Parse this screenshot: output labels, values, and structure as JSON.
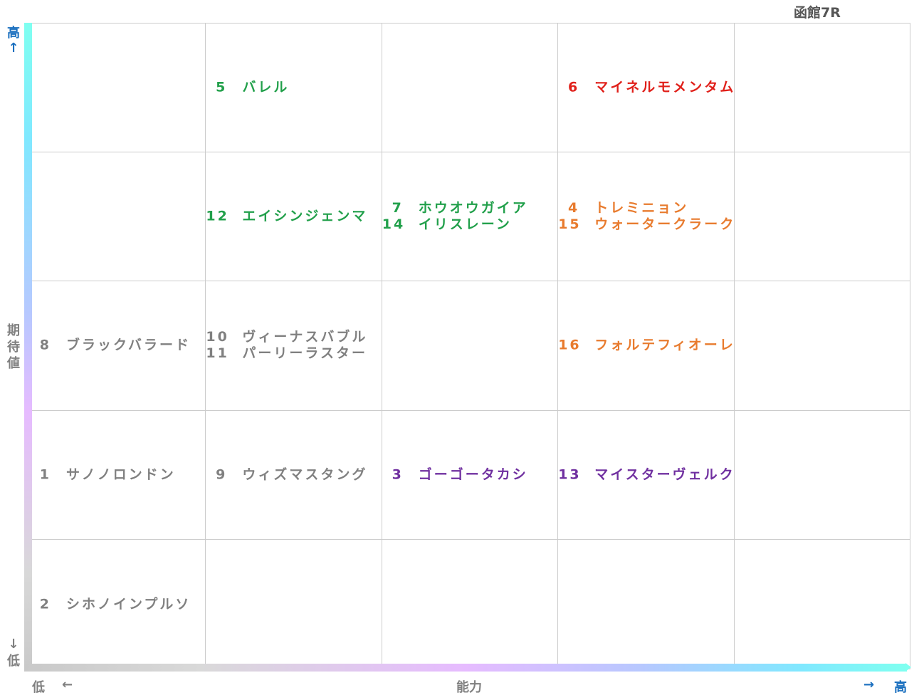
{
  "title": "函館7R",
  "axis": {
    "y_label": "期待値",
    "y_high": "高",
    "y_high_arrow": "↑",
    "y_low_arrow": "↓",
    "y_low": "低",
    "x_label": "能力",
    "x_low": "低",
    "x_low_arrow": "←",
    "x_high_arrow": "→",
    "x_high": "高"
  },
  "colors": {
    "high_axis": "#1a6fbf",
    "low_axis": "#808080",
    "green": "#22a04b",
    "red": "#e0201a",
    "orange": "#e87b2e",
    "gray": "#808080",
    "purple": "#7030a0"
  },
  "chart_data": {
    "type": "table",
    "x_axis": "能力",
    "y_axis": "期待値",
    "columns": 5,
    "rows": 5,
    "cells": [
      {
        "row": 0,
        "col": 1,
        "color": "green",
        "entries": [
          {
            "num": "5",
            "name": "バレル"
          }
        ]
      },
      {
        "row": 0,
        "col": 3,
        "color": "red",
        "entries": [
          {
            "num": "6",
            "name": "マイネルモメンタム"
          }
        ]
      },
      {
        "row": 1,
        "col": 1,
        "color": "green",
        "entries": [
          {
            "num": "12",
            "name": "エイシンジェンマ"
          }
        ]
      },
      {
        "row": 1,
        "col": 2,
        "color": "green",
        "entries": [
          {
            "num": "7",
            "name": "ホウオウガイア"
          },
          {
            "num": "14",
            "name": "イリスレーン"
          }
        ]
      },
      {
        "row": 1,
        "col": 3,
        "color": "orange",
        "entries": [
          {
            "num": "4",
            "name": "トレミニョン"
          },
          {
            "num": "15",
            "name": "ウォータークラーク"
          }
        ]
      },
      {
        "row": 2,
        "col": 0,
        "color": "gray",
        "entries": [
          {
            "num": "8",
            "name": "ブラックバラード"
          }
        ]
      },
      {
        "row": 2,
        "col": 1,
        "color": "gray",
        "entries": [
          {
            "num": "10",
            "name": "ヴィーナスバブル"
          },
          {
            "num": "11",
            "name": "パーリーラスター"
          }
        ]
      },
      {
        "row": 2,
        "col": 3,
        "color": "orange",
        "entries": [
          {
            "num": "16",
            "name": "フォルテフィオーレ"
          }
        ]
      },
      {
        "row": 3,
        "col": 0,
        "color": "gray",
        "entries": [
          {
            "num": "1",
            "name": "サノノロンドン"
          }
        ]
      },
      {
        "row": 3,
        "col": 1,
        "color": "gray",
        "entries": [
          {
            "num": "9",
            "name": "ウィズマスタング"
          }
        ]
      },
      {
        "row": 3,
        "col": 2,
        "color": "purple",
        "entries": [
          {
            "num": "3",
            "name": "ゴーゴータカシ"
          }
        ]
      },
      {
        "row": 3,
        "col": 3,
        "color": "purple",
        "entries": [
          {
            "num": "13",
            "name": "マイスターヴェルク"
          }
        ]
      },
      {
        "row": 4,
        "col": 0,
        "color": "gray",
        "entries": [
          {
            "num": "2",
            "name": "シホノインプルソ"
          }
        ]
      }
    ]
  }
}
